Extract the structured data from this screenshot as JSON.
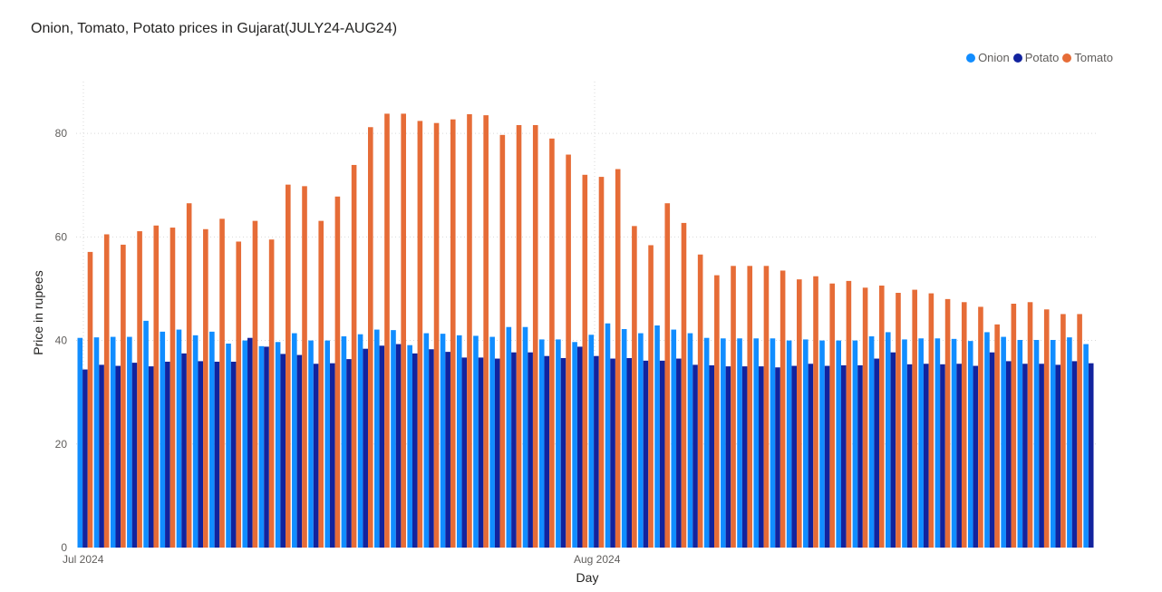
{
  "chart_data": {
    "type": "bar",
    "title": "Onion, Tomato, Potato prices in Gujarat(JULY24-AUG24)",
    "xlabel": "Day",
    "ylabel": "Price in rupees",
    "ylim": [
      0,
      90
    ],
    "yticks": [
      0,
      20,
      40,
      60,
      80
    ],
    "xtick_labels": [
      {
        "label": "Jul 2024",
        "index": 0
      },
      {
        "label": "Aug 2024",
        "index": 31
      }
    ],
    "grid": true,
    "legend_position": "top-right",
    "categories": [
      "2024-07-01",
      "2024-07-02",
      "2024-07-03",
      "2024-07-04",
      "2024-07-05",
      "2024-07-06",
      "2024-07-07",
      "2024-07-08",
      "2024-07-09",
      "2024-07-10",
      "2024-07-11",
      "2024-07-12",
      "2024-07-13",
      "2024-07-14",
      "2024-07-15",
      "2024-07-16",
      "2024-07-17",
      "2024-07-18",
      "2024-07-19",
      "2024-07-20",
      "2024-07-21",
      "2024-07-22",
      "2024-07-23",
      "2024-07-24",
      "2024-07-25",
      "2024-07-26",
      "2024-07-27",
      "2024-07-28",
      "2024-07-29",
      "2024-07-30",
      "2024-07-31",
      "2024-08-01",
      "2024-08-02",
      "2024-08-03",
      "2024-08-04",
      "2024-08-05",
      "2024-08-06",
      "2024-08-07",
      "2024-08-08",
      "2024-08-09",
      "2024-08-10",
      "2024-08-11",
      "2024-08-12",
      "2024-08-13",
      "2024-08-14",
      "2024-08-15",
      "2024-08-16",
      "2024-08-17",
      "2024-08-18",
      "2024-08-19",
      "2024-08-20",
      "2024-08-21",
      "2024-08-22",
      "2024-08-23",
      "2024-08-24",
      "2024-08-25",
      "2024-08-26",
      "2024-08-27",
      "2024-08-28",
      "2024-08-29",
      "2024-08-30",
      "2024-08-31"
    ],
    "series": [
      {
        "name": "Onion",
        "color": "#118dff",
        "values": [
          40.5,
          40.6,
          40.7,
          40.7,
          43.8,
          41.7,
          42.1,
          41.0,
          41.7,
          39.4,
          40.0,
          38.9,
          39.7,
          41.4,
          40.0,
          40.0,
          40.8,
          41.2,
          42.1,
          42.0,
          39.1,
          41.4,
          41.3,
          41.0,
          40.9,
          40.7,
          42.6,
          42.6,
          40.2,
          40.2,
          39.7,
          41.1,
          43.3,
          42.2,
          41.4,
          42.9,
          42.1,
          41.4,
          40.5,
          40.4,
          40.4,
          40.4,
          40.4,
          40.0,
          40.2,
          40.0,
          40.0,
          40.0,
          40.8,
          41.6,
          40.2,
          40.4,
          40.4,
          40.3,
          39.9,
          41.6,
          40.7,
          40.1,
          40.1,
          40.1,
          40.6,
          39.3
        ]
      },
      {
        "name": "Potato",
        "color": "#12239e",
        "values": [
          34.4,
          35.3,
          35.1,
          35.7,
          35.0,
          35.9,
          37.5,
          36.0,
          35.9,
          35.9,
          40.5,
          38.8,
          37.4,
          37.2,
          35.5,
          35.6,
          36.4,
          38.4,
          39.0,
          39.3,
          37.5,
          38.3,
          37.8,
          36.7,
          36.7,
          36.5,
          37.7,
          37.7,
          37.0,
          36.6,
          38.8,
          37.0,
          36.5,
          36.6,
          36.1,
          36.1,
          36.5,
          35.3,
          35.2,
          35.0,
          35.0,
          35.0,
          34.8,
          35.1,
          35.5,
          35.1,
          35.2,
          35.2,
          36.5,
          37.7,
          35.4,
          35.5,
          35.4,
          35.5,
          35.1,
          37.7,
          36.0,
          35.5,
          35.5,
          35.3,
          36.0,
          35.6
        ]
      },
      {
        "name": "Tomato",
        "color": "#e66c37",
        "values": [
          57.1,
          60.5,
          58.5,
          61.1,
          62.2,
          61.8,
          66.5,
          61.5,
          63.5,
          59.1,
          63.1,
          59.5,
          70.1,
          69.8,
          63.1,
          67.8,
          73.9,
          81.2,
          83.8,
          83.8,
          82.4,
          82.0,
          82.7,
          83.7,
          83.5,
          79.7,
          81.6,
          81.6,
          79.0,
          75.9,
          72.0,
          71.6,
          73.1,
          62.1,
          58.4,
          66.5,
          62.7,
          56.6,
          52.6,
          54.4,
          54.4,
          54.4,
          53.5,
          51.8,
          52.4,
          51.0,
          51.5,
          50.2,
          50.6,
          49.2,
          49.8,
          49.1,
          48.0,
          47.4,
          46.5,
          43.1,
          47.1,
          47.4,
          46.0,
          45.1,
          45.1,
          null
        ]
      }
    ]
  },
  "legend": [
    {
      "label": "Onion",
      "color": "#118dff"
    },
    {
      "label": "Potato",
      "color": "#12239e"
    },
    {
      "label": "Tomato",
      "color": "#e66c37"
    }
  ]
}
